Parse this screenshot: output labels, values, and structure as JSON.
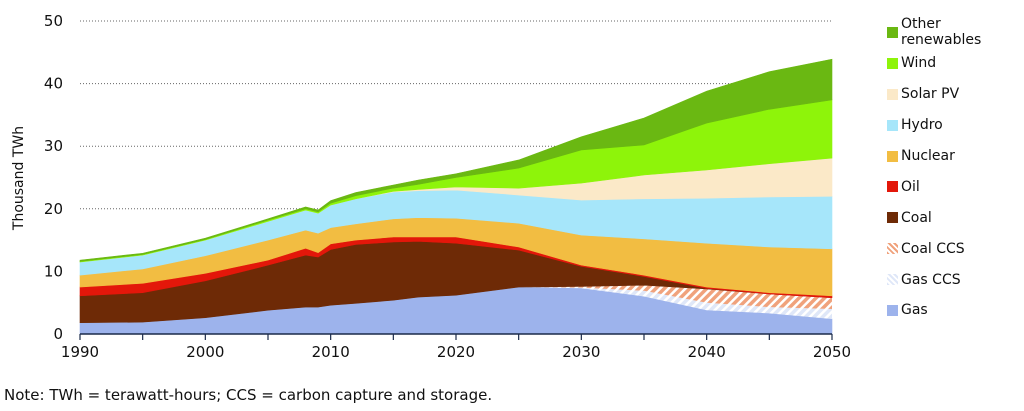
{
  "chart_data": {
    "type": "area",
    "stacked": true,
    "title": "",
    "xlabel": "",
    "ylabel": "Thousand TWh",
    "xlim": [
      1990,
      2050
    ],
    "ylim": [
      0,
      50
    ],
    "x_ticks": [
      1990,
      2000,
      2010,
      2020,
      2030,
      2040,
      2050
    ],
    "y_ticks": [
      0,
      10,
      20,
      30,
      40,
      50
    ],
    "grid": "horizontal dotted",
    "legend_placement": "right",
    "x": [
      1990,
      1995,
      2000,
      2005,
      2008,
      2009,
      2010,
      2012,
      2015,
      2017,
      2020,
      2025,
      2030,
      2035,
      2040,
      2045,
      2050
    ],
    "series": [
      {
        "name": "Gas",
        "color": "#9db3ec",
        "pattern": "solid",
        "values": [
          1.8,
          1.9,
          2.6,
          3.8,
          4.3,
          4.3,
          4.6,
          4.9,
          5.4,
          5.9,
          6.2,
          7.5,
          7.3,
          6.0,
          3.8,
          3.3,
          2.4
        ]
      },
      {
        "name": "Gas CCS",
        "color": "#dfe7f8",
        "pattern": "hatch",
        "values": [
          0,
          0,
          0,
          0,
          0,
          0,
          0,
          0,
          0,
          0,
          0,
          0,
          0.1,
          0.9,
          1.2,
          1.0,
          1.6
        ]
      },
      {
        "name": "Coal CCS",
        "color": "#f0a27c",
        "pattern": "hatch",
        "values": [
          0,
          0,
          0,
          0,
          0,
          0,
          0,
          0,
          0,
          0,
          0,
          0,
          0.2,
          0.9,
          2.2,
          2.1,
          1.8
        ]
      },
      {
        "name": "Coal",
        "color": "#6e2a06",
        "pattern": "solid",
        "values": [
          4.3,
          4.7,
          5.9,
          7.2,
          8.3,
          8.0,
          8.9,
          9.4,
          9.3,
          8.9,
          8.3,
          5.9,
          3.2,
          1.4,
          0.1,
          0,
          0
        ]
      },
      {
        "name": "Oil",
        "color": "#e3170a",
        "pattern": "solid",
        "values": [
          1.4,
          1.5,
          1.2,
          0.8,
          1.1,
          0.7,
          0.9,
          0.7,
          0.8,
          0.7,
          1.0,
          0.5,
          0.2,
          0.2,
          0.2,
          0.2,
          0.3
        ]
      },
      {
        "name": "Nuclear",
        "color": "#f2bd42",
        "pattern": "solid",
        "values": [
          1.9,
          2.3,
          2.8,
          3.2,
          2.9,
          3.1,
          2.6,
          2.6,
          2.9,
          3.1,
          3.0,
          3.8,
          4.8,
          5.8,
          7.0,
          7.3,
          7.5
        ]
      },
      {
        "name": "Hydro",
        "color": "#a6e6fa",
        "pattern": "solid",
        "values": [
          2.1,
          2.2,
          2.5,
          3.0,
          3.2,
          3.2,
          3.6,
          4.0,
          4.3,
          4.3,
          4.5,
          4.5,
          5.6,
          6.4,
          7.2,
          8.0,
          8.4
        ]
      },
      {
        "name": "Solar PV",
        "color": "#fbe9c8",
        "pattern": "solid",
        "values": [
          0,
          0,
          0,
          0,
          0,
          0,
          0,
          0,
          0.1,
          0.2,
          0.5,
          1.1,
          2.7,
          3.8,
          4.5,
          5.3,
          6.1
        ]
      },
      {
        "name": "Wind",
        "color": "#8ef40a",
        "pattern": "solid",
        "values": [
          0.1,
          0.1,
          0.1,
          0.2,
          0.2,
          0.2,
          0.3,
          0.5,
          0.5,
          0.8,
          1.5,
          3.2,
          5.3,
          4.8,
          7.5,
          8.7,
          9.3
        ]
      },
      {
        "name": "Other renewables",
        "color": "#6ab812",
        "pattern": "solid",
        "values": [
          0.2,
          0.2,
          0.2,
          0.2,
          0.3,
          0.3,
          0.4,
          0.5,
          0.5,
          0.7,
          0.6,
          1.3,
          2.1,
          4.3,
          5.1,
          6.0,
          6.5
        ]
      }
    ],
    "legend_order": [
      "Other renewables",
      "Wind",
      "Solar PV",
      "Hydro",
      "Nuclear",
      "Oil",
      "Coal",
      "Coal CCS",
      "Gas CCS",
      "Gas"
    ]
  },
  "note": "Note:  TWh = terawatt-hours; CCS = carbon capture and storage."
}
